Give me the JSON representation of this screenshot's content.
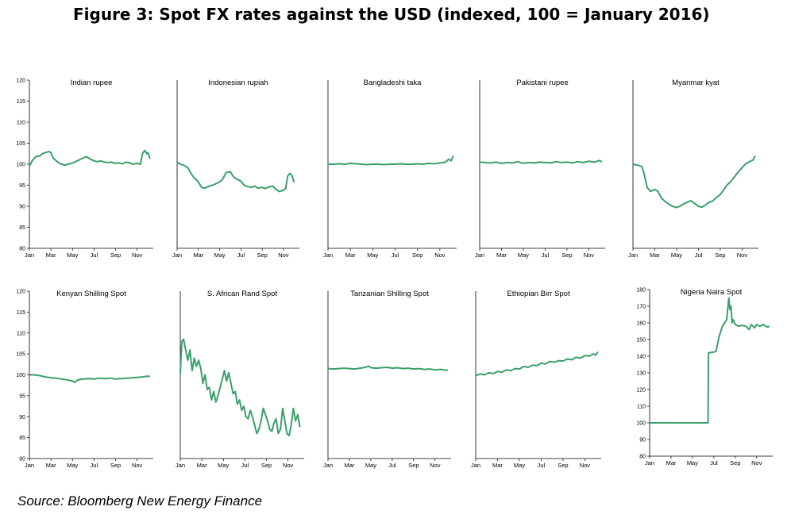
{
  "header": {
    "title": "Figure 3: Spot FX rates against the USD (indexed, 100 = January 2016)"
  },
  "footer": {
    "source": "Source: Bloomberg New Energy Finance"
  },
  "line_color": "#3aa06a",
  "chart_data": [
    {
      "type": "line",
      "title": "Indian rupee",
      "ylim": [
        80,
        120
      ],
      "yticks": [
        "120",
        "115",
        "110",
        "105",
        "100",
        "95",
        "90",
        "85",
        "80"
      ],
      "show_yticks": true,
      "xticks": [
        "Jan",
        "Mar",
        "May",
        "Jul",
        "Sep",
        "Nov"
      ],
      "x": [
        0,
        0.3,
        0.6,
        1,
        1.2,
        1.5,
        1.8,
        2,
        2.2,
        2.5,
        2.8,
        3,
        3.3,
        3.6,
        4,
        4.3,
        4.6,
        5,
        5.3,
        5.6,
        6,
        6.3,
        6.6,
        7,
        7.3,
        7.6,
        8,
        8.3,
        8.6,
        9,
        9.3,
        9.6,
        10,
        10.3,
        10.5,
        10.7,
        10.9,
        11,
        11.2
      ],
      "values": [
        99.5,
        101,
        101.8,
        102,
        102.5,
        102.8,
        103,
        102.8,
        101.5,
        100.8,
        100.2,
        100,
        99.8,
        100,
        100.3,
        100.6,
        101,
        101.5,
        101.8,
        101.3,
        100.8,
        100.6,
        100.8,
        100.5,
        100.4,
        100.5,
        100.2,
        100.3,
        100.1,
        100.5,
        100.3,
        100,
        100.2,
        100,
        102.5,
        103.3,
        102.5,
        102.8,
        101.3
      ]
    },
    {
      "type": "line",
      "title": "Indonesian rupiah",
      "ylim": [
        80,
        120
      ],
      "yticks": [],
      "show_yticks": false,
      "xticks": [
        "Jan",
        "Mar",
        "May",
        "Jul",
        "Sep",
        "Nov"
      ],
      "x": [
        0,
        0.3,
        0.6,
        1,
        1.3,
        1.6,
        2,
        2.3,
        2.6,
        3,
        3.3,
        3.6,
        4,
        4.3,
        4.6,
        5,
        5.3,
        5.6,
        6,
        6.3,
        6.6,
        7,
        7.3,
        7.6,
        8,
        8.3,
        8.6,
        9,
        9.3,
        9.6,
        10,
        10.2,
        10.4,
        10.6,
        10.8,
        11
      ],
      "values": [
        100.5,
        100,
        99.8,
        99.2,
        97.8,
        96.8,
        95.8,
        94.5,
        94.3,
        94.8,
        95,
        95.3,
        95.8,
        96.5,
        98,
        98.2,
        97,
        96.5,
        96,
        95,
        94.7,
        94.5,
        94.8,
        94.3,
        94.5,
        94.2,
        94.6,
        94.8,
        94,
        93.5,
        93.8,
        94.2,
        97.2,
        97.8,
        97.3,
        95.7
      ]
    },
    {
      "type": "line",
      "title": "Bangladeshi taka",
      "ylim": [
        80,
        120
      ],
      "yticks": [],
      "show_yticks": false,
      "xticks": [
        "Jan",
        "Mar",
        "May",
        "Jul",
        "Sep",
        "Nov"
      ],
      "x": [
        0,
        0.5,
        1,
        1.5,
        2,
        2.5,
        3,
        3.5,
        4,
        4.5,
        5,
        5.5,
        6,
        6.5,
        7,
        7.5,
        8,
        8.5,
        9,
        9.5,
        10,
        10.5,
        10.8,
        11,
        11.2
      ],
      "values": [
        100,
        100,
        100.1,
        100,
        100.2,
        100.1,
        100,
        99.9,
        100,
        100,
        99.9,
        100,
        100,
        100.1,
        100,
        100,
        100.1,
        100,
        100.2,
        100.1,
        100.3,
        100.5,
        101.2,
        100.8,
        102
      ]
    },
    {
      "type": "line",
      "title": "Pakistani rupee",
      "ylim": [
        80,
        120
      ],
      "yticks": [],
      "show_yticks": false,
      "xticks": [
        "Jan",
        "Mar",
        "May",
        "Jul",
        "Sep",
        "Nov"
      ],
      "x": [
        0,
        0.5,
        1,
        1.5,
        2,
        2.5,
        3,
        3.5,
        4,
        4.5,
        5,
        5.5,
        6,
        6.5,
        7,
        7.5,
        8,
        8.5,
        9,
        9.5,
        10,
        10.5,
        11,
        11.2
      ],
      "values": [
        100.5,
        100.4,
        100.3,
        100.5,
        100.2,
        100.4,
        100.3,
        100.6,
        100.2,
        100.4,
        100.3,
        100.5,
        100.4,
        100.3,
        100.6,
        100.4,
        100.5,
        100.3,
        100.6,
        100.4,
        100.7,
        100.5,
        100.9,
        100.5
      ]
    },
    {
      "type": "line",
      "title": "Myanmar kyat",
      "ylim": [
        80,
        120
      ],
      "yticks": [],
      "show_yticks": false,
      "xticks": [
        "Jan",
        "Mar",
        "May",
        "Jul",
        "Sep",
        "Nov"
      ],
      "x": [
        0,
        0.4,
        0.8,
        1,
        1.3,
        1.6,
        2,
        2.3,
        2.6,
        3,
        3.3,
        3.6,
        4,
        4.3,
        4.6,
        5,
        5.3,
        5.6,
        6,
        6.3,
        6.6,
        7,
        7.3,
        7.6,
        8,
        8.3,
        8.6,
        9,
        9.3,
        9.6,
        10,
        10.3,
        10.6,
        11,
        11.2
      ],
      "values": [
        100,
        99.8,
        99.5,
        98,
        94.5,
        93.5,
        94,
        93.5,
        92,
        91,
        90.5,
        90,
        89.7,
        90,
        90.5,
        91,
        91.3,
        90.8,
        90,
        89.8,
        90.2,
        91,
        91.2,
        92,
        92.8,
        93.8,
        95,
        96,
        97,
        98,
        99.2,
        100,
        100.5,
        101,
        102
      ]
    },
    {
      "type": "line",
      "title": "Kenyan Shilling Spot",
      "ylim": [
        80,
        120
      ],
      "yticks": [
        "120",
        "115",
        "110",
        "105",
        "100",
        "95",
        "90",
        "85",
        "80"
      ],
      "show_yticks": true,
      "xticks": [
        "Jan",
        "Mar",
        "May",
        "Jul",
        "Sep",
        "Nov"
      ],
      "x": [
        0,
        0.5,
        1,
        1.5,
        2,
        2.5,
        3,
        3.5,
        4,
        4.2,
        4.5,
        5,
        5.5,
        6,
        6.5,
        7,
        7.5,
        8,
        8.5,
        9,
        9.5,
        10,
        10.5,
        11,
        11.2
      ],
      "values": [
        100,
        100,
        99.8,
        99.5,
        99.3,
        99.2,
        99,
        98.8,
        98.5,
        98.2,
        98.8,
        99,
        99.1,
        99,
        99.2,
        99.1,
        99.2,
        99,
        99.1,
        99.2,
        99.3,
        99.4,
        99.5,
        99.7,
        99.6
      ]
    },
    {
      "type": "line",
      "title": "S. African Rand Spot",
      "ylim": [
        80,
        120
      ],
      "yticks": [],
      "show_yticks": false,
      "xticks": [
        "Jan",
        "Mar",
        "May",
        "Jul",
        "Sep",
        "Nov"
      ],
      "x": [
        0,
        0.15,
        0.3,
        0.5,
        0.7,
        0.9,
        1.1,
        1.3,
        1.5,
        1.7,
        1.9,
        2.1,
        2.3,
        2.5,
        2.7,
        2.9,
        3.1,
        3.3,
        3.5,
        3.7,
        3.9,
        4.1,
        4.3,
        4.5,
        4.7,
        4.9,
        5.1,
        5.3,
        5.5,
        5.7,
        5.9,
        6.1,
        6.3,
        6.5,
        6.7,
        6.9,
        7.1,
        7.3,
        7.5,
        7.7,
        7.9,
        8.1,
        8.3,
        8.5,
        8.7,
        8.9,
        9.1,
        9.3,
        9.5,
        9.7,
        9.9,
        10.1,
        10.3,
        10.5,
        10.7,
        10.9,
        11.1
      ],
      "values": [
        100.5,
        108,
        108.5,
        106,
        103.5,
        106,
        101,
        104,
        102,
        103.5,
        101.5,
        98,
        100,
        96.5,
        97,
        94,
        96,
        93.5,
        95,
        97,
        99,
        101,
        98.5,
        100.5,
        98,
        95.5,
        96,
        93,
        94,
        91.5,
        92.5,
        90,
        89.5,
        91.5,
        90,
        88,
        86,
        87,
        89,
        92,
        90.5,
        89,
        87,
        86.5,
        88.5,
        89.5,
        86,
        87,
        92,
        89,
        86,
        85.5,
        88,
        92,
        89,
        90.5,
        87.5
      ]
    },
    {
      "type": "line",
      "title": "Tanzanian Shilling Spot",
      "ylim": [
        80,
        120
      ],
      "yticks": [],
      "show_yticks": false,
      "xticks": [
        "Jan",
        "Mar",
        "May",
        "Jul",
        "Sep",
        "Nov"
      ],
      "x": [
        0,
        0.5,
        1,
        1.5,
        2,
        2.5,
        3,
        3.5,
        3.8,
        4,
        4.5,
        5,
        5.5,
        6,
        6.5,
        7,
        7.5,
        8,
        8.5,
        9,
        9.5,
        10,
        10.5,
        11,
        11.2
      ],
      "values": [
        101.5,
        101.4,
        101.5,
        101.6,
        101.5,
        101.4,
        101.6,
        101.8,
        102.1,
        101.7,
        101.6,
        101.7,
        101.8,
        101.6,
        101.7,
        101.5,
        101.6,
        101.4,
        101.5,
        101.3,
        101.4,
        101.2,
        101.3,
        101.1,
        101.2
      ]
    },
    {
      "type": "line",
      "title": "Ethiopian Birr Spot",
      "ylim": [
        80,
        120
      ],
      "yticks": [],
      "show_yticks": false,
      "xticks": [
        "Jan",
        "Mar",
        "May",
        "Jul",
        "Sep",
        "Nov"
      ],
      "x": [
        0,
        0.4,
        0.8,
        1.2,
        1.6,
        2,
        2.4,
        2.8,
        3.2,
        3.6,
        4,
        4.4,
        4.8,
        5.2,
        5.6,
        6,
        6.4,
        6.8,
        7.2,
        7.6,
        8,
        8.4,
        8.8,
        9.2,
        9.6,
        10,
        10.4,
        10.8,
        11,
        11.2
      ],
      "values": [
        99.8,
        100.2,
        100,
        100.5,
        100.3,
        100.8,
        100.6,
        101.2,
        101,
        101.5,
        101.4,
        102,
        101.8,
        102.3,
        102.2,
        102.8,
        102.6,
        103.2,
        103,
        103.4,
        103.3,
        103.8,
        103.6,
        104.2,
        104,
        104.6,
        104.5,
        105,
        104.7,
        105.5
      ]
    },
    {
      "type": "line",
      "title": "Nigeria Naira Spot",
      "ylim": [
        80,
        180
      ],
      "yticks": [
        "180",
        "170",
        "160",
        "150",
        "140",
        "130",
        "120",
        "110",
        "100",
        "90",
        "80"
      ],
      "show_yticks": true,
      "xticks": [
        "Jan",
        "Mar",
        "May",
        "Jul",
        "Sep",
        "Nov"
      ],
      "x": [
        0,
        1,
        2,
        3,
        4,
        5,
        5.45,
        5.5,
        6,
        6.2,
        6.5,
        6.8,
        7,
        7.2,
        7.4,
        7.5,
        7.6,
        7.7,
        7.8,
        8,
        8.3,
        8.6,
        9,
        9.3,
        9.5,
        9.8,
        10,
        10.3,
        10.6,
        11,
        11.2
      ],
      "values": [
        100,
        100,
        100,
        100,
        100,
        100,
        100,
        142,
        142.5,
        143,
        152,
        158,
        160,
        162,
        175,
        168,
        170,
        160,
        162,
        159,
        158,
        158.5,
        158,
        156,
        159,
        157,
        159,
        158,
        159,
        157.5,
        158
      ]
    }
  ]
}
